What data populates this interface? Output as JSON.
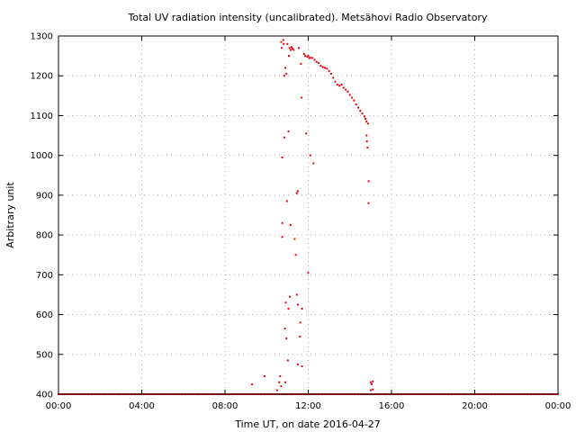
{
  "chart_data": {
    "type": "scatter",
    "title": "Total UV radiation intensity (uncalibrated). Metsähovi Radio Observatory",
    "xlabel": "Time UT, on date 2016-04-27",
    "ylabel": "Arbitrary unit",
    "xlim": [
      0,
      24
    ],
    "ylim": [
      400,
      1300
    ],
    "x_unit": "hours UT",
    "x_ticks": [
      {
        "value": 0,
        "label": "00:00"
      },
      {
        "value": 4,
        "label": "04:00"
      },
      {
        "value": 8,
        "label": "08:00"
      },
      {
        "value": 12,
        "label": "12:00"
      },
      {
        "value": 16,
        "label": "16:00"
      },
      {
        "value": 20,
        "label": "20:00"
      },
      {
        "value": 24,
        "label": "00:00"
      }
    ],
    "y_ticks": [
      {
        "value": 400,
        "label": "400"
      },
      {
        "value": 500,
        "label": "500"
      },
      {
        "value": 600,
        "label": "600"
      },
      {
        "value": 700,
        "label": "700"
      },
      {
        "value": 800,
        "label": "800"
      },
      {
        "value": 900,
        "label": "900"
      },
      {
        "value": 1000,
        "label": "1000"
      },
      {
        "value": 1100,
        "label": "1100"
      },
      {
        "value": 1200,
        "label": "1200"
      },
      {
        "value": 1300,
        "label": "1300"
      }
    ],
    "grid": true,
    "point_color": "#e8000b",
    "series": [
      {
        "name": "",
        "baseline": {
          "y": 400,
          "x_from": 0,
          "x_to": 24,
          "step": 0.1
        },
        "points": [
          [
            9.3,
            425
          ],
          [
            9.9,
            445
          ],
          [
            10.5,
            410
          ],
          [
            10.6,
            430
          ],
          [
            10.65,
            445
          ],
          [
            10.7,
            420
          ],
          [
            10.7,
            1285
          ],
          [
            10.72,
            1270
          ],
          [
            10.75,
            995
          ],
          [
            10.75,
            830
          ],
          [
            10.75,
            795
          ],
          [
            10.8,
            1290
          ],
          [
            10.82,
            1280
          ],
          [
            10.85,
            1200
          ],
          [
            10.85,
            1045
          ],
          [
            10.9,
            1220
          ],
          [
            10.88,
            565
          ],
          [
            10.9,
            430
          ],
          [
            10.92,
            630
          ],
          [
            10.95,
            540
          ],
          [
            10.95,
            1205
          ],
          [
            10.98,
            885
          ],
          [
            11.0,
            1280
          ],
          [
            11.02,
            485
          ],
          [
            11.05,
            615
          ],
          [
            11.05,
            1060
          ],
          [
            11.07,
            1250
          ],
          [
            11.1,
            1270
          ],
          [
            11.12,
            645
          ],
          [
            11.15,
            1265
          ],
          [
            11.15,
            825
          ],
          [
            11.2,
            1272
          ],
          [
            11.25,
            1268
          ],
          [
            11.3,
            1265
          ],
          [
            11.35,
            790
          ],
          [
            11.4,
            750
          ],
          [
            11.45,
            905
          ],
          [
            11.45,
            650
          ],
          [
            11.5,
            910
          ],
          [
            11.5,
            625
          ],
          [
            11.5,
            475
          ],
          [
            11.55,
            1270
          ],
          [
            11.6,
            545
          ],
          [
            11.62,
            580
          ],
          [
            11.65,
            1230
          ],
          [
            11.68,
            1145
          ],
          [
            11.7,
            615
          ],
          [
            11.7,
            470
          ],
          [
            11.8,
            1255
          ],
          [
            11.85,
            1250
          ],
          [
            11.9,
            1055
          ],
          [
            11.95,
            1248
          ],
          [
            12.0,
            1250
          ],
          [
            12.0,
            705
          ],
          [
            12.05,
            1245
          ],
          [
            12.1,
            1000
          ],
          [
            12.1,
            1245
          ],
          [
            12.2,
            1245
          ],
          [
            12.25,
            980
          ],
          [
            12.3,
            1240
          ],
          [
            12.4,
            1235
          ],
          [
            12.5,
            1232
          ],
          [
            12.6,
            1225
          ],
          [
            12.7,
            1222
          ],
          [
            12.8,
            1220
          ],
          [
            12.9,
            1218
          ],
          [
            13.0,
            1212
          ],
          [
            13.1,
            1205
          ],
          [
            13.2,
            1195
          ],
          [
            13.3,
            1185
          ],
          [
            13.4,
            1178
          ],
          [
            13.5,
            1175
          ],
          [
            13.6,
            1178
          ],
          [
            13.7,
            1170
          ],
          [
            13.8,
            1165
          ],
          [
            13.9,
            1160
          ],
          [
            14.0,
            1152
          ],
          [
            14.1,
            1145
          ],
          [
            14.2,
            1138
          ],
          [
            14.3,
            1128
          ],
          [
            14.4,
            1120
          ],
          [
            14.5,
            1112
          ],
          [
            14.6,
            1105
          ],
          [
            14.7,
            1098
          ],
          [
            14.75,
            1092
          ],
          [
            14.8,
            1085
          ],
          [
            14.8,
            1050
          ],
          [
            14.82,
            1035
          ],
          [
            14.85,
            1020
          ],
          [
            14.87,
            1080
          ],
          [
            14.9,
            935
          ],
          [
            14.9,
            880
          ],
          [
            15.0,
            430
          ],
          [
            15.05,
            425
          ],
          [
            15.1,
            432
          ],
          [
            15.0,
            410
          ],
          [
            15.1,
            412
          ]
        ]
      }
    ]
  }
}
